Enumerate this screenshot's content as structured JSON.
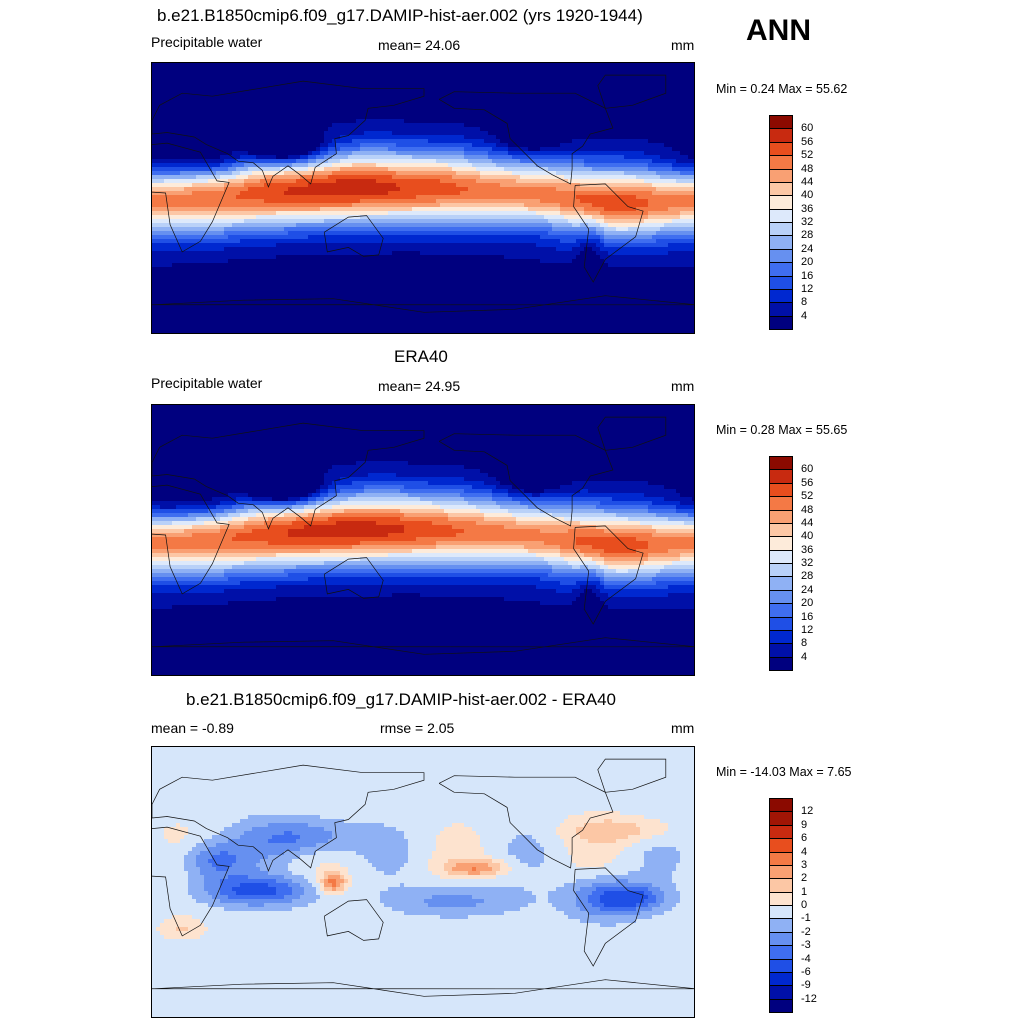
{
  "season": "ANN",
  "panels": [
    {
      "title": "b.e21.B1850cmip6.f09_g17.DAMIP-hist-aer.002 (yrs 1920-1944)",
      "left_label": "Precipitable water",
      "center_label": "mean=  24.06",
      "units": "mm",
      "minmax": "Min =   0.24 Max =  55.62"
    },
    {
      "title": "ERA40",
      "left_label": "Precipitable water",
      "center_label": "mean=  24.95",
      "units": "mm",
      "minmax": "Min =   0.28 Max =  55.65"
    },
    {
      "title": "b.e21.B1850cmip6.f09_g17.DAMIP-hist-aer.002 - ERA40",
      "left_label": "mean =  -0.89",
      "center_label": "rmse =   2.05",
      "units": "mm",
      "minmax": "Min = -14.03 Max =   7.65"
    }
  ],
  "chart_data": [
    {
      "type": "heatmap",
      "title": "b.e21.B1850cmip6.f09_g17.DAMIP-hist-aer.002 (yrs 1920-1944)",
      "variable": "Precipitable water",
      "units": "mm",
      "mean": 24.06,
      "min": 0.24,
      "max": 55.62,
      "colorbar_levels": [
        4,
        8,
        12,
        16,
        20,
        24,
        28,
        32,
        36,
        40,
        44,
        48,
        52,
        56,
        60
      ],
      "colorbar_labels": [
        "60",
        "56",
        "52",
        "48",
        "44",
        "40",
        "36",
        "32",
        "28",
        "24",
        "20",
        "16",
        "12",
        "8",
        "4"
      ],
      "colors": [
        "#00007f",
        "#0010a8",
        "#0028d0",
        "#1f4fe6",
        "#3f6ef0",
        "#6690f0",
        "#8fb1f4",
        "#b9d1f8",
        "#dde9fb",
        "#fdebda",
        "#fcc7a5",
        "#f9a073",
        "#f47945",
        "#e84e1e",
        "#c82a10",
        "#8b0a00"
      ]
    },
    {
      "type": "heatmap",
      "title": "ERA40",
      "variable": "Precipitable water",
      "units": "mm",
      "mean": 24.95,
      "min": 0.28,
      "max": 55.65,
      "colorbar_levels": [
        4,
        8,
        12,
        16,
        20,
        24,
        28,
        32,
        36,
        40,
        44,
        48,
        52,
        56,
        60
      ],
      "colorbar_labels": [
        "60",
        "56",
        "52",
        "48",
        "44",
        "40",
        "36",
        "32",
        "28",
        "24",
        "20",
        "16",
        "12",
        "8",
        "4"
      ],
      "colors": [
        "#00007f",
        "#0010a8",
        "#0028d0",
        "#1f4fe6",
        "#3f6ef0",
        "#6690f0",
        "#8fb1f4",
        "#b9d1f8",
        "#dde9fb",
        "#fdebda",
        "#fcc7a5",
        "#f9a073",
        "#f47945",
        "#e84e1e",
        "#c82a10",
        "#8b0a00"
      ]
    },
    {
      "type": "heatmap",
      "title": "b.e21.B1850cmip6.f09_g17.DAMIP-hist-aer.002 - ERA40",
      "units": "mm",
      "mean": -0.89,
      "rmse": 2.05,
      "min": -14.03,
      "max": 7.65,
      "colorbar_levels": [
        -12,
        -9,
        -6,
        -4,
        -3,
        -2,
        -1,
        0,
        1,
        2,
        3,
        4,
        6,
        9,
        12
      ],
      "colorbar_labels": [
        "12",
        "9",
        "6",
        "4",
        "3",
        "2",
        "1",
        "0",
        "-1",
        "-2",
        "-3",
        "-4",
        "-6",
        "-9",
        "-12"
      ],
      "colors": [
        "#00007f",
        "#0010a8",
        "#0028d0",
        "#1f4fe6",
        "#3f6ef0",
        "#6690f0",
        "#8fb1f4",
        "#d6e6fa",
        "#fde3cf",
        "#fcc7a5",
        "#f9a073",
        "#f47945",
        "#e84e1e",
        "#c82a10",
        "#a01505",
        "#8b0a00"
      ]
    }
  ]
}
